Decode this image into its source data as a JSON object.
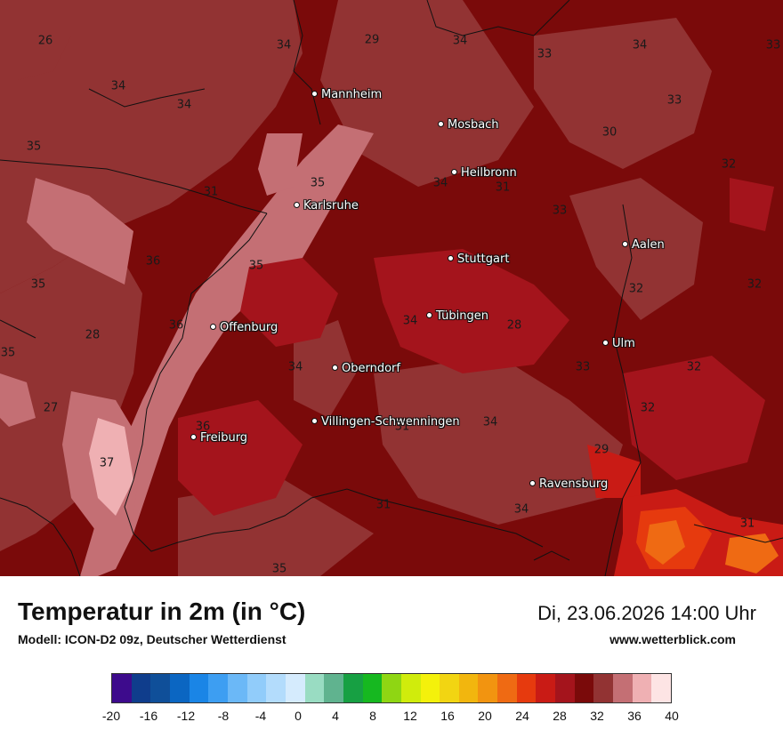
{
  "header": {
    "title": "Temperatur in 2m (in °C)",
    "model": "Modell: ICON-D2 09z, Deutscher Wetterdienst",
    "datetime": "Di, 23.06.2026 14:00 Uhr",
    "website": "www.wetterblick.com"
  },
  "cities": [
    {
      "name": "Mannheim"
    },
    {
      "name": "Mosbach"
    },
    {
      "name": "Heilbronn"
    },
    {
      "name": "Karlsruhe"
    },
    {
      "name": "Aalen"
    },
    {
      "name": "Stuttgart"
    },
    {
      "name": "Tübingen"
    },
    {
      "name": "Offenburg"
    },
    {
      "name": "Ulm"
    },
    {
      "name": "Oberndorf"
    },
    {
      "name": "Villingen-Schwenningen"
    },
    {
      "name": "Freiburg"
    },
    {
      "name": "Ravensburg"
    }
  ],
  "map_values": [
    "26",
    "34",
    "29",
    "34",
    "33",
    "34",
    "33",
    "34",
    "34",
    "33",
    "30",
    "35",
    "32",
    "31",
    "35",
    "34",
    "31",
    "33",
    "36",
    "35",
    "35",
    "32",
    "32",
    "28",
    "36",
    "34",
    "28",
    "35",
    "34",
    "33",
    "32",
    "27",
    "32",
    "36",
    "34",
    "31",
    "37",
    "29",
    "34",
    "31",
    "31",
    "35"
  ],
  "legend": {
    "ticks": [
      "-20",
      "-16",
      "-12",
      "-8",
      "-4",
      "0",
      "4",
      "8",
      "12",
      "16",
      "20",
      "24",
      "28",
      "32",
      "36",
      "40"
    ],
    "colors": [
      "#3d0b8c",
      "#0f3d8c",
      "#0f4f99",
      "#0b66c2",
      "#1a85e6",
      "#3d9ef2",
      "#6bb8f7",
      "#91ccfa",
      "#b3dcfc",
      "#d5ebfd",
      "#99dcc2",
      "#60b38f",
      "#17a043",
      "#16b820",
      "#8fd613",
      "#d0ec0c",
      "#f4f10b",
      "#f2d512",
      "#f2b60e",
      "#f29410",
      "#ef6a13",
      "#e63a0e",
      "#c91b15",
      "#a4141c",
      "#7a0a0a",
      "#923333",
      "#c46f74",
      "#efb0b3",
      "#fde4e4"
    ]
  },
  "chart_data": {
    "type": "heatmap",
    "title": "Temperatur in 2m (in °C)",
    "colorbar_range": [
      -20,
      40
    ],
    "colorbar_step": 2,
    "colorbar_tick_labels": [
      -20,
      -16,
      -12,
      -8,
      -4,
      0,
      4,
      8,
      12,
      16,
      20,
      24,
      28,
      32,
      36,
      40
    ],
    "point_values": [
      26,
      34,
      29,
      34,
      33,
      34,
      33,
      34,
      34,
      33,
      30,
      35,
      32,
      31,
      35,
      34,
      31,
      33,
      36,
      35,
      35,
      32,
      32,
      28,
      36,
      34,
      28,
      35,
      34,
      33,
      32,
      27,
      32,
      36,
      34,
      31,
      37,
      29,
      34,
      31,
      31,
      35
    ]
  }
}
